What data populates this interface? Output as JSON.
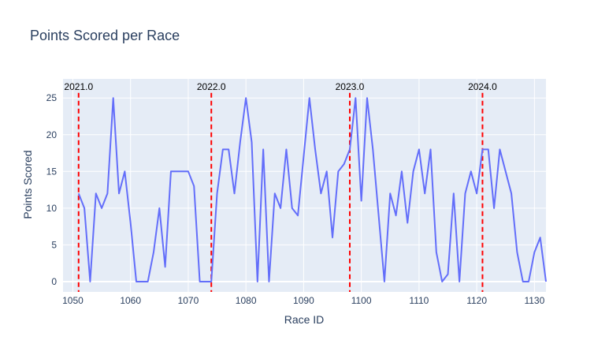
{
  "chart_data": {
    "type": "line",
    "title": "Points Scored per Race",
    "xlabel": "Race ID",
    "ylabel": "Points Scored",
    "xlim": [
      1048.3,
      1132
    ],
    "ylim": [
      -1.4,
      27.6
    ],
    "xticks": [
      1050,
      1060,
      1070,
      1080,
      1090,
      1100,
      1110,
      1120,
      1130
    ],
    "yticks": [
      0,
      5,
      10,
      15,
      20,
      25
    ],
    "grid": true,
    "series": [
      {
        "color": "#636efa",
        "x": [
          1051,
          1052,
          1053,
          1054,
          1055,
          1056,
          1057,
          1058,
          1059,
          1060,
          1061,
          1062,
          1063,
          1064,
          1065,
          1066,
          1067,
          1068,
          1069,
          1070,
          1071,
          1072,
          1073,
          1074,
          1075,
          1076,
          1077,
          1078,
          1079,
          1080,
          1081,
          1082,
          1083,
          1084,
          1085,
          1086,
          1087,
          1088,
          1089,
          1090,
          1091,
          1092,
          1093,
          1094,
          1095,
          1096,
          1097,
          1098,
          1099,
          1100,
          1101,
          1102,
          1103,
          1104,
          1105,
          1106,
          1107,
          1108,
          1109,
          1110,
          1111,
          1112,
          1113,
          1114,
          1115,
          1116,
          1117,
          1118,
          1119,
          1120,
          1121,
          1122,
          1123,
          1124,
          1125,
          1126,
          1127,
          1128,
          1129,
          1130,
          1131,
          1132
        ],
        "y": [
          12,
          10,
          0,
          12,
          10,
          12,
          25,
          12,
          15,
          8,
          0,
          0,
          0,
          4,
          10,
          2,
          15,
          15,
          15,
          15,
          13,
          0,
          0,
          0,
          12,
          18,
          18,
          12,
          19,
          25,
          19,
          0,
          18,
          0,
          12,
          10,
          18,
          10,
          9,
          17,
          25,
          18,
          12,
          15,
          6,
          15,
          16,
          18,
          25,
          11,
          25,
          18,
          9,
          0,
          12,
          9,
          15,
          8,
          15,
          18,
          12,
          18,
          4,
          0,
          1,
          12,
          0,
          12,
          15,
          12,
          18,
          18,
          10,
          18,
          15,
          12,
          4,
          0,
          0,
          4,
          6,
          0
        ]
      }
    ],
    "season_markers": [
      {
        "x": 1051,
        "label": "2021.0"
      },
      {
        "x": 1074,
        "label": "2022.0"
      },
      {
        "x": 1098,
        "label": "2023.0"
      },
      {
        "x": 1121,
        "label": "2024.0"
      }
    ],
    "marker_color": "#ff0000",
    "plot_background": "#e5ecf6"
  }
}
